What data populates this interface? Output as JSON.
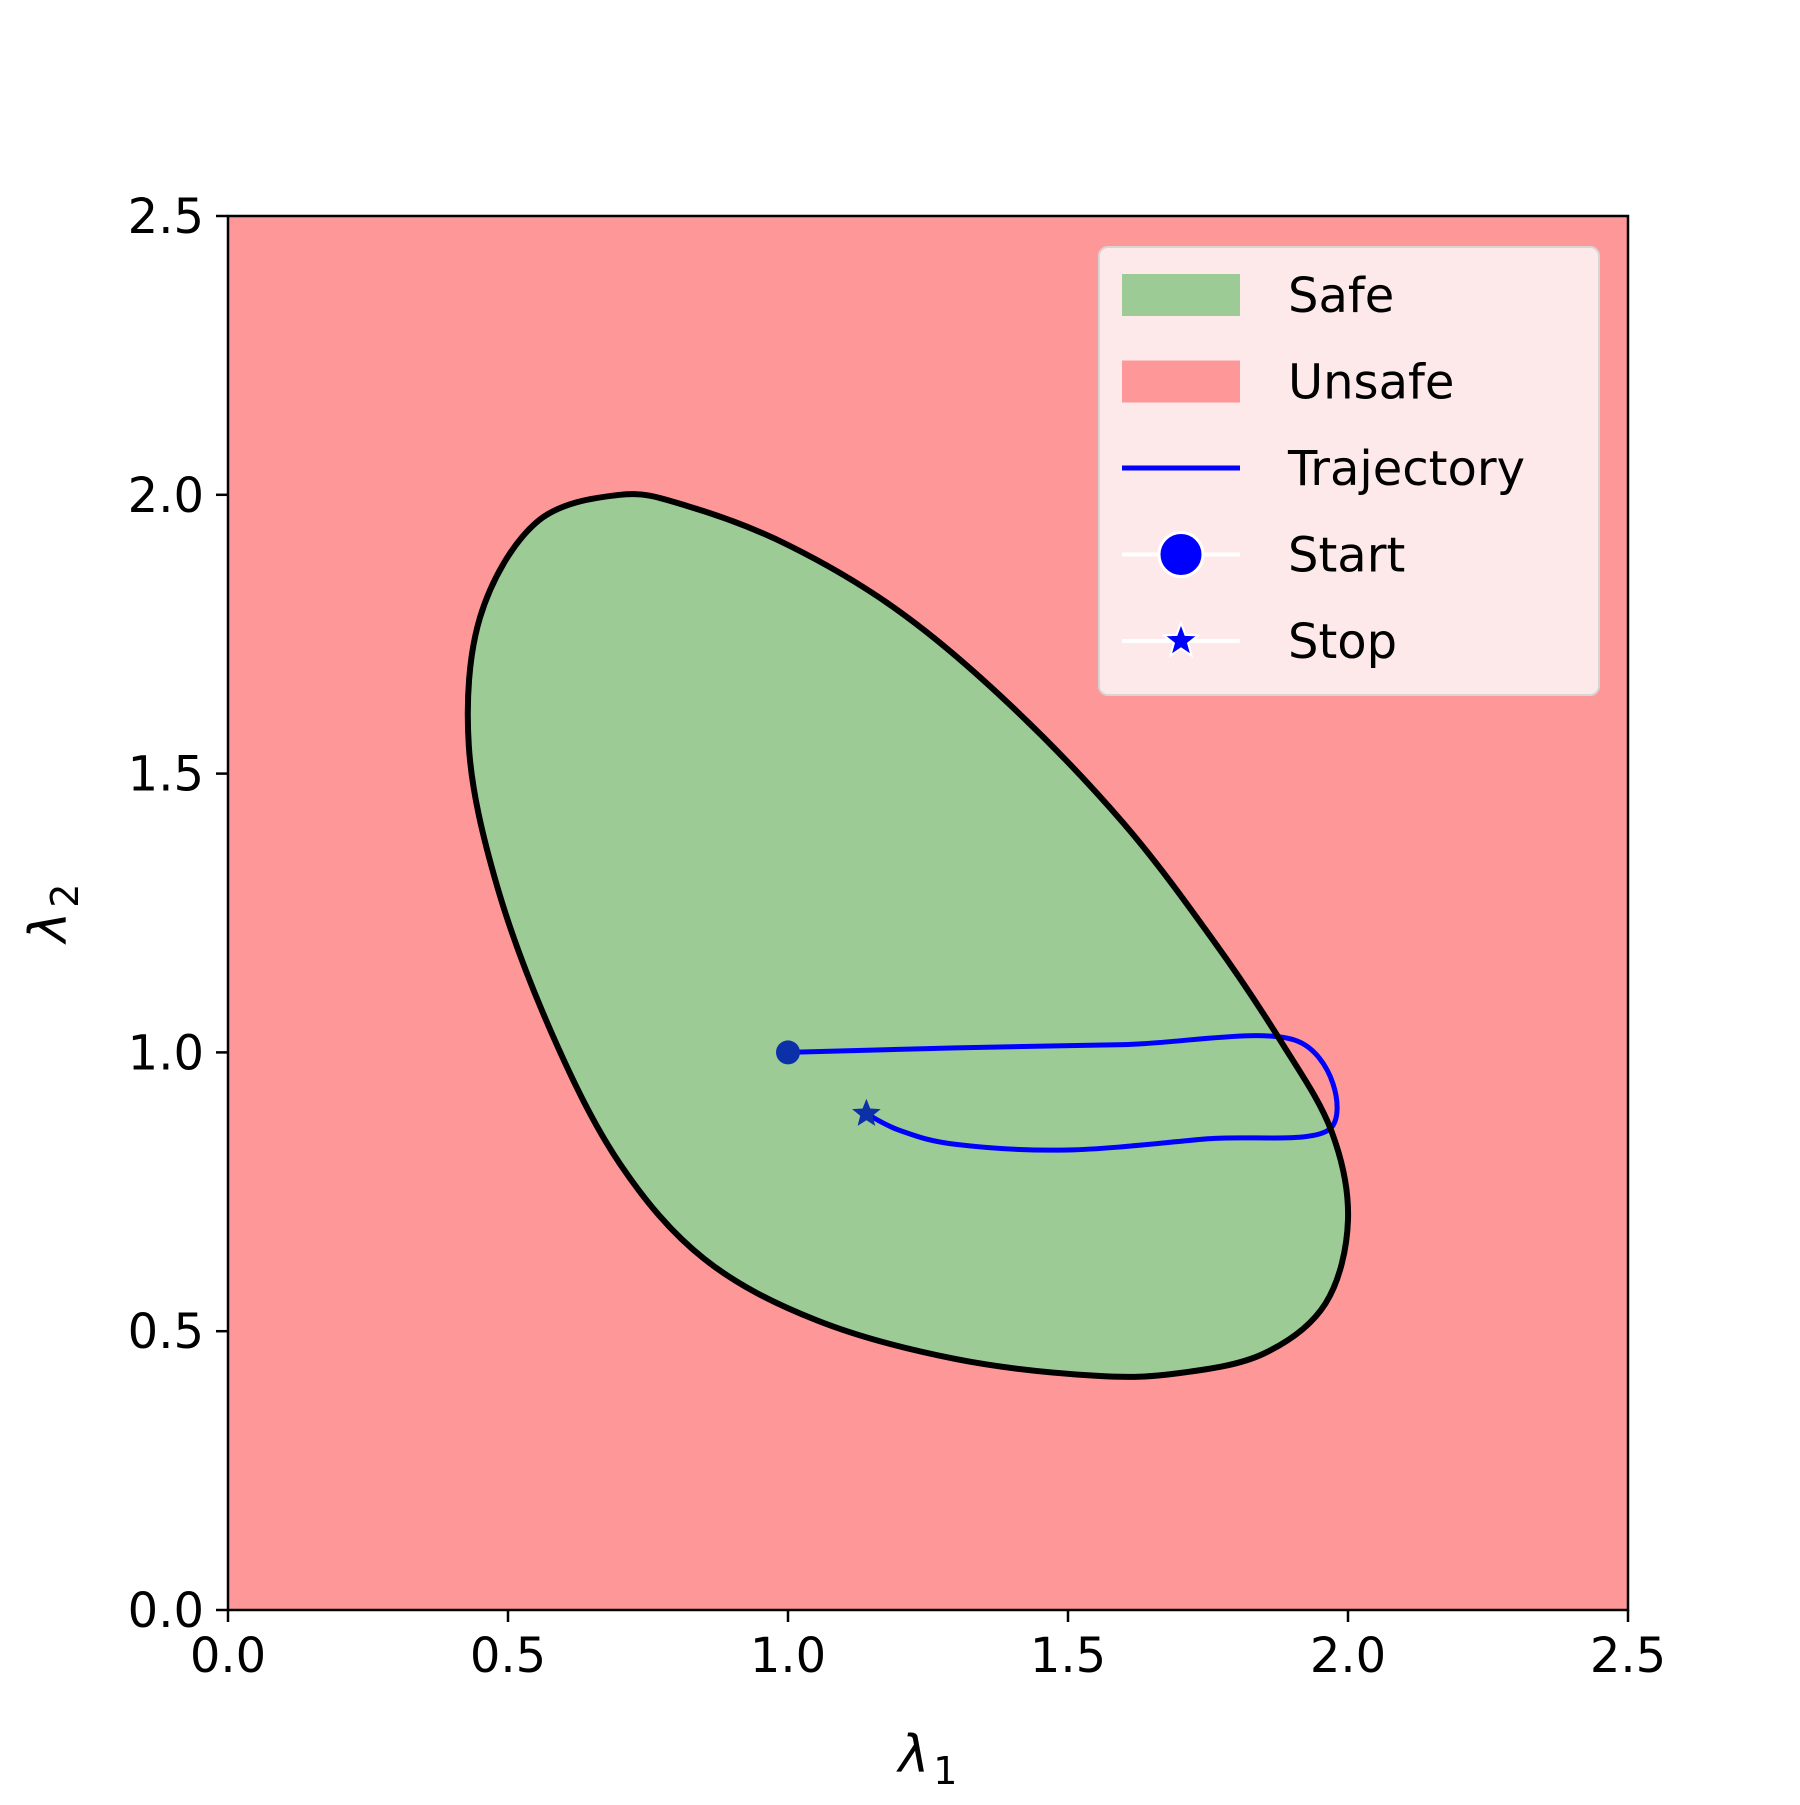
{
  "chart_data": {
    "type": "region_plot",
    "xlabel": {
      "symbol": "λ",
      "subscript": "1"
    },
    "ylabel": {
      "symbol": "λ",
      "subscript": "2"
    },
    "xlim": [
      0.0,
      2.5
    ],
    "ylim": [
      0.0,
      2.5
    ],
    "xticks": [
      "0.0",
      "0.5",
      "1.0",
      "1.5",
      "2.0",
      "2.5"
    ],
    "yticks": [
      "0.0",
      "0.5",
      "1.0",
      "1.5",
      "2.0",
      "2.5"
    ],
    "colors": {
      "safe": "#9ccb96",
      "unsafe": "#fe9797",
      "boundary": "#000000",
      "trajectory": "#0000ff",
      "legend_bg": "#fde9e9"
    },
    "safe_boundary": [
      [
        0.7,
        2.0
      ],
      [
        0.82,
        1.98
      ],
      [
        1.0,
        1.91
      ],
      [
        1.2,
        1.79
      ],
      [
        1.4,
        1.62
      ],
      [
        1.6,
        1.41
      ],
      [
        1.76,
        1.2
      ],
      [
        1.88,
        1.02
      ],
      [
        1.97,
        0.86
      ],
      [
        2.0,
        0.7
      ],
      [
        1.96,
        0.55
      ],
      [
        1.85,
        0.46
      ],
      [
        1.7,
        0.425
      ],
      [
        1.55,
        0.42
      ],
      [
        1.3,
        0.45
      ],
      [
        1.05,
        0.52
      ],
      [
        0.85,
        0.63
      ],
      [
        0.7,
        0.8
      ],
      [
        0.58,
        1.03
      ],
      [
        0.48,
        1.3
      ],
      [
        0.43,
        1.55
      ],
      [
        0.45,
        1.78
      ],
      [
        0.55,
        1.95
      ]
    ],
    "trajectory": [
      [
        1.0,
        1.0
      ],
      [
        1.3,
        1.008
      ],
      [
        1.6,
        1.014
      ],
      [
        1.91,
        1.02
      ],
      [
        1.97,
        0.865
      ],
      [
        1.75,
        0.845
      ],
      [
        1.5,
        0.825
      ],
      [
        1.3,
        0.835
      ],
      [
        1.2,
        0.86
      ],
      [
        1.14,
        0.89
      ]
    ],
    "start": [
      1.0,
      1.0
    ],
    "stop": [
      1.14,
      0.89
    ],
    "legend": {
      "position": "top-right",
      "entries": [
        {
          "label": "Safe",
          "kind": "patch",
          "color": "#9ccb96"
        },
        {
          "label": "Unsafe",
          "kind": "patch",
          "color": "#fe9797"
        },
        {
          "label": "Trajectory",
          "kind": "line",
          "color": "#0000ff"
        },
        {
          "label": "Start",
          "kind": "circle",
          "color": "#0000ff"
        },
        {
          "label": "Stop",
          "kind": "star",
          "color": "#0000ff"
        }
      ]
    }
  }
}
